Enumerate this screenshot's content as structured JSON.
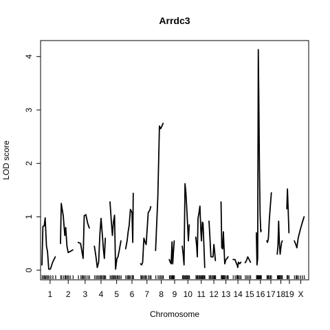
{
  "chart_data": {
    "type": "line",
    "title": "Arrdc3",
    "xlabel": "Chromosome",
    "ylabel": "LOD score",
    "ylim": [
      -0.18,
      4.3
    ],
    "y_ticks": [
      0,
      1,
      2,
      3,
      4
    ],
    "line_color": "#000000",
    "chromosomes": [
      {
        "label": "1",
        "points": [
          [
            0.0,
            0.1
          ],
          [
            0.06,
            0.82
          ],
          [
            0.14,
            0.83
          ],
          [
            0.2,
            0.98
          ],
          [
            0.28,
            0.45
          ],
          [
            0.34,
            0.35
          ],
          [
            0.42,
            0.02
          ],
          [
            0.52,
            0.02
          ],
          [
            0.66,
            0.15
          ],
          [
            0.82,
            0.25
          ]
        ]
      },
      {
        "label": "2",
        "points": [
          [
            0.0,
            0.5
          ],
          [
            0.05,
            1.25
          ],
          [
            0.18,
            1.02
          ],
          [
            0.28,
            0.65
          ],
          [
            0.34,
            0.8
          ],
          [
            0.42,
            0.45
          ],
          [
            0.5,
            0.33
          ],
          [
            0.62,
            0.35
          ],
          [
            0.8,
            0.38
          ]
        ]
      },
      {
        "label": "3",
        "points": [
          [
            0.0,
            0.52
          ],
          [
            0.17,
            0.5
          ],
          [
            0.27,
            0.35
          ],
          [
            0.35,
            0.22
          ],
          [
            0.43,
            1.02
          ],
          [
            0.55,
            1.04
          ],
          [
            0.68,
            0.88
          ],
          [
            0.8,
            0.79
          ]
        ]
      },
      {
        "label": "4",
        "points": [
          [
            0.0,
            0.45
          ],
          [
            0.12,
            0.25
          ],
          [
            0.22,
            0.05
          ],
          [
            0.32,
            0.15
          ],
          [
            0.42,
            0.7
          ],
          [
            0.5,
            0.97
          ],
          [
            0.58,
            0.72
          ],
          [
            0.68,
            0.38
          ],
          [
            0.75,
            0.22
          ],
          [
            0.82,
            0.6
          ]
        ]
      },
      {
        "label": "5",
        "points": [
          [
            0.0,
            1.28
          ],
          [
            0.1,
            0.92
          ],
          [
            0.18,
            0.65
          ],
          [
            0.26,
            0.9
          ],
          [
            0.34,
            1.03
          ],
          [
            0.42,
            0.02
          ],
          [
            0.52,
            0.22
          ],
          [
            0.6,
            0.25
          ],
          [
            0.7,
            0.38
          ],
          [
            0.82,
            0.55
          ]
        ]
      },
      {
        "label": "6",
        "points": [
          [
            0.0,
            0.4
          ],
          [
            0.12,
            0.55
          ],
          [
            0.2,
            0.72
          ],
          [
            0.28,
            0.84
          ],
          [
            0.38,
            1.14
          ],
          [
            0.5,
            1.08
          ],
          [
            0.56,
            0.52
          ],
          [
            0.6,
            1.44
          ]
        ]
      },
      {
        "label": "7",
        "points": [
          [
            0.0,
            0.12
          ],
          [
            0.08,
            0.1
          ],
          [
            0.16,
            0.15
          ],
          [
            0.26,
            0.6
          ],
          [
            0.36,
            0.52
          ],
          [
            0.44,
            0.48
          ],
          [
            0.6,
            1.08
          ],
          [
            0.72,
            1.12
          ],
          [
            0.8,
            1.19
          ]
        ]
      },
      {
        "label": "8",
        "points": [
          [
            0.0,
            0.37
          ],
          [
            0.2,
            1.38
          ],
          [
            0.34,
            2.7
          ],
          [
            0.44,
            2.65
          ],
          [
            0.56,
            2.7
          ],
          [
            0.66,
            2.75
          ]
        ]
      },
      {
        "label": "9",
        "points": [
          [
            0.0,
            0.2
          ],
          [
            0.1,
            0.15
          ],
          [
            0.18,
            0.12
          ],
          [
            0.26,
            0.53
          ],
          [
            0.32,
            0.12
          ],
          [
            0.38,
            0.3
          ],
          [
            0.46,
            0.55
          ]
        ]
      },
      {
        "label": "10",
        "points": [
          [
            0.0,
            0.45
          ],
          [
            0.08,
            0.3
          ],
          [
            0.16,
            0.1
          ],
          [
            0.24,
            1.62
          ],
          [
            0.32,
            1.45
          ],
          [
            0.4,
            1.15
          ],
          [
            0.48,
            0.82
          ],
          [
            0.54,
            0.55
          ],
          [
            0.62,
            0.85
          ]
        ]
      },
      {
        "label": "11",
        "points": [
          [
            0.0,
            0.62
          ],
          [
            0.08,
            0.45
          ],
          [
            0.14,
            0.25
          ],
          [
            0.2,
            0.97
          ],
          [
            0.3,
            1.08
          ],
          [
            0.38,
            1.2
          ],
          [
            0.46,
            0.75
          ],
          [
            0.52,
            0.55
          ],
          [
            0.6,
            0.9
          ],
          [
            0.66,
            0.88
          ],
          [
            0.74,
            0.5
          ],
          [
            0.82,
            0.05
          ]
        ]
      },
      {
        "label": "12",
        "points": [
          [
            0.0,
            0.92
          ],
          [
            0.1,
            0.6
          ],
          [
            0.2,
            0.25
          ],
          [
            0.32,
            0.25
          ],
          [
            0.42,
            0.25
          ],
          [
            0.5,
            0.48
          ],
          [
            0.58,
            0.35
          ],
          [
            0.66,
            0.18
          ]
        ]
      },
      {
        "label": "13",
        "points": [
          [
            0.0,
            1.28
          ],
          [
            0.08,
            0.42
          ],
          [
            0.16,
            0.4
          ],
          [
            0.24,
            0.72
          ],
          [
            0.3,
            0.45
          ],
          [
            0.38,
            0.12
          ],
          [
            0.5,
            0.2
          ],
          [
            0.62,
            0.22
          ],
          [
            0.72,
            0.25
          ]
        ]
      },
      {
        "label": "14",
        "points": [
          [
            0.0,
            0.2
          ],
          [
            0.2,
            0.2
          ],
          [
            0.35,
            0.12
          ],
          [
            0.42,
            0.1
          ],
          [
            0.48,
            0.05
          ],
          [
            0.54,
            0.15
          ],
          [
            0.68,
            0.12
          ],
          [
            0.8,
            0.15
          ]
        ]
      },
      {
        "label": "15",
        "points": [
          [
            0.0,
            0.14
          ],
          [
            0.15,
            0.18
          ],
          [
            0.3,
            0.25
          ],
          [
            0.45,
            0.2
          ],
          [
            0.6,
            0.15
          ]
        ]
      },
      {
        "label": "16",
        "points": [
          [
            0.0,
            0.7
          ],
          [
            0.08,
            0.1
          ],
          [
            0.16,
            0.22
          ],
          [
            0.24,
            4.13
          ],
          [
            0.3,
            3.3
          ],
          [
            0.38,
            1.9
          ],
          [
            0.46,
            1.05
          ],
          [
            0.54,
            0.72
          ],
          [
            0.6,
            0.75
          ]
        ]
      },
      {
        "label": "17",
        "points": [
          [
            0.0,
            0.55
          ],
          [
            0.1,
            0.52
          ],
          [
            0.2,
            0.6
          ],
          [
            0.32,
            0.95
          ],
          [
            0.44,
            1.2
          ],
          [
            0.56,
            1.45
          ]
        ]
      },
      {
        "label": "18",
        "points": [
          [
            0.0,
            0.3
          ],
          [
            0.1,
            0.45
          ],
          [
            0.2,
            0.92
          ],
          [
            0.3,
            0.5
          ],
          [
            0.4,
            0.3
          ],
          [
            0.5,
            0.42
          ],
          [
            0.6,
            0.52
          ],
          [
            0.7,
            0.55
          ]
        ]
      },
      {
        "label": "19",
        "points": [
          [
            0.0,
            1.15
          ],
          [
            0.12,
            1.52
          ],
          [
            0.24,
            1.2
          ],
          [
            0.42,
            0.7
          ]
        ]
      },
      {
        "label": "X",
        "points": [
          [
            0.0,
            0.55
          ],
          [
            0.12,
            0.48
          ],
          [
            0.2,
            0.42
          ],
          [
            0.3,
            0.6
          ],
          [
            0.45,
            0.75
          ],
          [
            0.6,
            0.88
          ],
          [
            0.75,
            1.0
          ]
        ]
      }
    ]
  }
}
